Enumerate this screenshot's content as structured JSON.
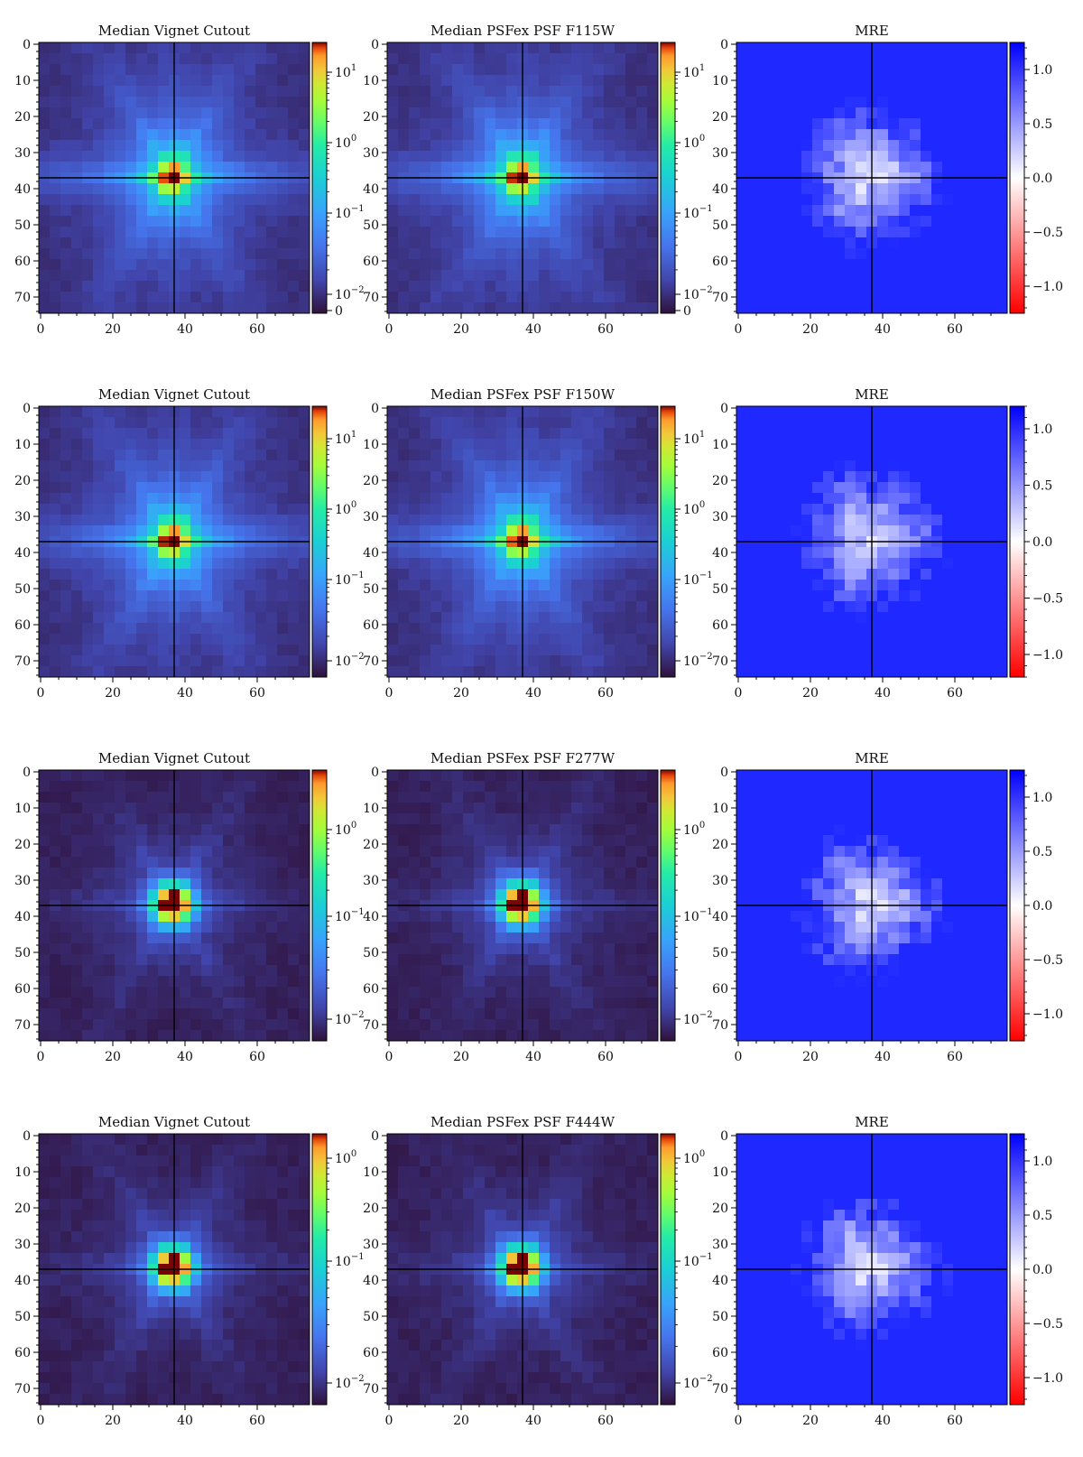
{
  "figure": {
    "description_title": "",
    "crosshair_x": 37,
    "crosshair_y": 37
  },
  "chart_data": [
    {
      "type": "heatmap",
      "row": 0,
      "col": 0,
      "title": "Median Vignet Cutout",
      "xlim": [
        0,
        75
      ],
      "ylim": [
        75,
        0
      ],
      "xticks": [
        0,
        20,
        40,
        60
      ],
      "yticks": [
        0,
        10,
        20,
        30,
        40,
        50,
        60,
        70
      ],
      "colormap": "jet-like",
      "colorbar": {
        "scale": "log",
        "ticks": [
          {
            "base": "10",
            "exp": "1"
          },
          {
            "base": "10",
            "exp": "0"
          },
          {
            "base": "10",
            "exp": "−1"
          },
          {
            "base": "10",
            "exp": "−2"
          },
          {
            "base": "0",
            "exp": ""
          }
        ],
        "positions": [
          0.11,
          0.37,
          0.63,
          0.93,
          0.99
        ]
      },
      "psf_style": "spiky",
      "seed": 11
    },
    {
      "type": "heatmap",
      "row": 0,
      "col": 1,
      "title": "Median PSFex PSF F115W",
      "xlim": [
        0,
        75
      ],
      "ylim": [
        75,
        0
      ],
      "xticks": [
        0,
        20,
        40,
        60
      ],
      "yticks": [
        0,
        10,
        20,
        30,
        40,
        50,
        60,
        70
      ],
      "colormap": "jet-like",
      "colorbar": {
        "scale": "log",
        "ticks": [
          {
            "base": "10",
            "exp": "1"
          },
          {
            "base": "10",
            "exp": "0"
          },
          {
            "base": "10",
            "exp": "−1"
          },
          {
            "base": "10",
            "exp": "−2"
          },
          {
            "base": "0",
            "exp": ""
          }
        ],
        "positions": [
          0.11,
          0.37,
          0.63,
          0.93,
          0.99
        ]
      },
      "psf_style": "spiky",
      "seed": 12
    },
    {
      "type": "heatmap",
      "row": 0,
      "col": 2,
      "title": "MRE",
      "xlim": [
        0,
        75
      ],
      "ylim": [
        75,
        0
      ],
      "xticks": [
        0,
        20,
        40,
        60
      ],
      "yticks": [
        0,
        10,
        20,
        30,
        40,
        50,
        60,
        70
      ],
      "colormap": "bwr",
      "colorbar": {
        "scale": "linear",
        "range": [
          -1.25,
          1.25
        ],
        "ticks": [
          "1.0",
          "0.5",
          "0.0",
          "−0.5",
          "−1.0"
        ],
        "values": [
          1.0,
          0.5,
          0.0,
          -0.5,
          -1.0
        ]
      },
      "psf_style": "mre",
      "seed": 13
    },
    {
      "type": "heatmap",
      "row": 1,
      "col": 0,
      "title": "Median Vignet Cutout",
      "xlim": [
        0,
        75
      ],
      "ylim": [
        75,
        0
      ],
      "xticks": [
        0,
        20,
        40,
        60
      ],
      "yticks": [
        0,
        10,
        20,
        30,
        40,
        50,
        60,
        70
      ],
      "colormap": "jet-like",
      "colorbar": {
        "scale": "log",
        "ticks": [
          {
            "base": "10",
            "exp": "1"
          },
          {
            "base": "10",
            "exp": "0"
          },
          {
            "base": "10",
            "exp": "−1"
          },
          {
            "base": "10",
            "exp": "−2"
          }
        ],
        "positions": [
          0.12,
          0.38,
          0.64,
          0.94
        ]
      },
      "psf_style": "spiky",
      "seed": 21
    },
    {
      "type": "heatmap",
      "row": 1,
      "col": 1,
      "title": "Median PSFex PSF F150W",
      "xlim": [
        0,
        75
      ],
      "ylim": [
        75,
        0
      ],
      "xticks": [
        0,
        20,
        40,
        60
      ],
      "yticks": [
        0,
        10,
        20,
        30,
        40,
        50,
        60,
        70
      ],
      "colormap": "jet-like",
      "colorbar": {
        "scale": "log",
        "ticks": [
          {
            "base": "10",
            "exp": "1"
          },
          {
            "base": "10",
            "exp": "0"
          },
          {
            "base": "10",
            "exp": "−1"
          },
          {
            "base": "10",
            "exp": "−2"
          }
        ],
        "positions": [
          0.12,
          0.38,
          0.64,
          0.94
        ]
      },
      "psf_style": "spiky",
      "seed": 22
    },
    {
      "type": "heatmap",
      "row": 1,
      "col": 2,
      "title": "MRE",
      "xlim": [
        0,
        75
      ],
      "ylim": [
        75,
        0
      ],
      "xticks": [
        0,
        20,
        40,
        60
      ],
      "yticks": [
        0,
        10,
        20,
        30,
        40,
        50,
        60,
        70
      ],
      "colormap": "bwr",
      "colorbar": {
        "scale": "linear",
        "range": [
          -1.2,
          1.2
        ],
        "ticks": [
          "1.0",
          "0.5",
          "0.0",
          "−0.5",
          "−1.0"
        ],
        "values": [
          1.0,
          0.5,
          0.0,
          -0.5,
          -1.0
        ]
      },
      "psf_style": "mre",
      "seed": 23
    },
    {
      "type": "heatmap",
      "row": 2,
      "col": 0,
      "title": "Median Vignet Cutout",
      "xlim": [
        0,
        75
      ],
      "ylim": [
        75,
        0
      ],
      "xticks": [
        0,
        20,
        40,
        60
      ],
      "yticks": [
        0,
        10,
        20,
        30,
        40,
        50,
        60,
        70
      ],
      "colormap": "jet-like",
      "colorbar": {
        "scale": "log",
        "ticks": [
          {
            "base": "10",
            "exp": "0"
          },
          {
            "base": "10",
            "exp": "−1"
          },
          {
            "base": "10",
            "exp": "−2"
          }
        ],
        "positions": [
          0.22,
          0.54,
          0.92
        ]
      },
      "psf_style": "round",
      "seed": 31
    },
    {
      "type": "heatmap",
      "row": 2,
      "col": 1,
      "title": "Median PSFex PSF F277W",
      "xlim": [
        0,
        75
      ],
      "ylim": [
        75,
        0
      ],
      "xticks": [
        0,
        20,
        40,
        60
      ],
      "yticks": [
        0,
        10,
        20,
        30,
        40,
        50,
        60,
        70
      ],
      "colormap": "jet-like",
      "colorbar": {
        "scale": "log",
        "ticks": [
          {
            "base": "10",
            "exp": "0"
          },
          {
            "base": "10",
            "exp": "−1"
          },
          {
            "base": "10",
            "exp": "−2"
          }
        ],
        "positions": [
          0.22,
          0.54,
          0.92
        ]
      },
      "psf_style": "round",
      "seed": 32
    },
    {
      "type": "heatmap",
      "row": 2,
      "col": 2,
      "title": "MRE",
      "xlim": [
        0,
        75
      ],
      "ylim": [
        75,
        0
      ],
      "xticks": [
        0,
        20,
        40,
        60
      ],
      "yticks": [
        0,
        10,
        20,
        30,
        40,
        50,
        60,
        70
      ],
      "colormap": "bwr",
      "colorbar": {
        "scale": "linear",
        "range": [
          -1.25,
          1.25
        ],
        "ticks": [
          "1.0",
          "0.5",
          "0.0",
          "−0.5",
          "−1.0"
        ],
        "values": [
          1.0,
          0.5,
          0.0,
          -0.5,
          -1.0
        ]
      },
      "psf_style": "mre",
      "seed": 33
    },
    {
      "type": "heatmap",
      "row": 3,
      "col": 0,
      "title": "Median Vignet Cutout",
      "xlim": [
        0,
        75
      ],
      "ylim": [
        75,
        0
      ],
      "xticks": [
        0,
        20,
        40,
        60
      ],
      "yticks": [
        0,
        10,
        20,
        30,
        40,
        50,
        60,
        70
      ],
      "colormap": "jet-like",
      "colorbar": {
        "scale": "log",
        "ticks": [
          {
            "base": "10",
            "exp": "0"
          },
          {
            "base": "10",
            "exp": "−1"
          },
          {
            "base": "10",
            "exp": "−2"
          }
        ],
        "positions": [
          0.09,
          0.47,
          0.92
        ]
      },
      "psf_style": "round",
      "seed": 41
    },
    {
      "type": "heatmap",
      "row": 3,
      "col": 1,
      "title": "Median PSFex PSF F444W",
      "xlim": [
        0,
        75
      ],
      "ylim": [
        75,
        0
      ],
      "xticks": [
        0,
        20,
        40,
        60
      ],
      "yticks": [
        0,
        10,
        20,
        30,
        40,
        50,
        60,
        70
      ],
      "colormap": "jet-like",
      "colorbar": {
        "scale": "log",
        "ticks": [
          {
            "base": "10",
            "exp": "0"
          },
          {
            "base": "10",
            "exp": "−1"
          },
          {
            "base": "10",
            "exp": "−2"
          }
        ],
        "positions": [
          0.09,
          0.47,
          0.92
        ]
      },
      "psf_style": "round",
      "seed": 42
    },
    {
      "type": "heatmap",
      "row": 3,
      "col": 2,
      "title": "MRE",
      "xlim": [
        0,
        75
      ],
      "ylim": [
        75,
        0
      ],
      "xticks": [
        0,
        20,
        40,
        60
      ],
      "yticks": [
        0,
        10,
        20,
        30,
        40,
        50,
        60,
        70
      ],
      "colormap": "bwr",
      "colorbar": {
        "scale": "linear",
        "range": [
          -1.25,
          1.25
        ],
        "ticks": [
          "1.0",
          "0.5",
          "0.0",
          "−0.5",
          "−1.0"
        ],
        "values": [
          1.0,
          0.5,
          0.0,
          -0.5,
          -1.0
        ]
      },
      "psf_style": "mre",
      "seed": 43
    }
  ]
}
